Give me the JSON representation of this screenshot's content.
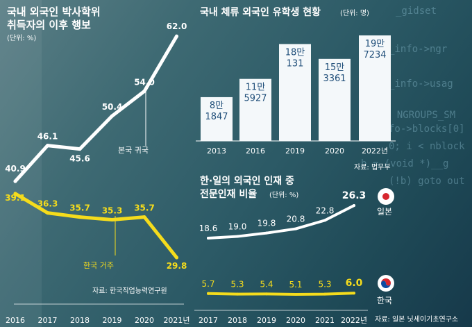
{
  "left_chart": {
    "title_line1": "국내 외국인 박사학위",
    "title_line2": "취득자의 이후 행보",
    "unit": "(단위: %)",
    "source": "자료: 한국직업능력연구원",
    "annotation_white": "본국 귀국",
    "annotation_yellow": "한국 거주"
  },
  "top_chart": {
    "title": "국내 체류 외국인 유학생 현황",
    "unit": "(단위: 명)",
    "source": "자료: 법무부"
  },
  "bottom_chart": {
    "title_line1": "한·일의 외국인 인재 중",
    "title_line2": "전문인재 비율",
    "unit": "(단위: %)",
    "source": "자료: 일본 닛세이기초연구소",
    "legend_japan": "일본",
    "legend_korea": "한국"
  },
  "colors": {
    "white_line": "#ffffff",
    "yellow_line": "#f5dc1c",
    "bar": "#f4f8fa",
    "bar_text": "#1f4e79"
  },
  "chart_data": [
    {
      "type": "line",
      "title": "국내 외국인 박사학위 취득자의 이후 행보",
      "x": [
        "2016",
        "2017",
        "2018",
        "2019",
        "2020",
        "2021년"
      ],
      "series": [
        {
          "name": "본국 귀국",
          "values": [
            40.9,
            46.1,
            45.6,
            50.4,
            54.0,
            62.0
          ],
          "labels": [
            "40.9",
            "46.1",
            "45.6",
            "50.4",
            "54.0",
            "62.0"
          ]
        },
        {
          "name": "한국 거주",
          "values": [
            39.1,
            36.3,
            35.7,
            35.3,
            35.7,
            29.8
          ],
          "labels": [
            "39.1",
            "36.3",
            "35.7",
            "35.3",
            "35.7",
            "29.8"
          ]
        }
      ]
    },
    {
      "type": "bar",
      "title": "국내 체류 외국인 유학생 현황",
      "categories": [
        "2013",
        "2016",
        "2019",
        "2020",
        "2022년"
      ],
      "values": [
        81847,
        115927,
        181131,
        153361,
        197234
      ],
      "labels": [
        [
          "8만",
          "1847"
        ],
        [
          "11만",
          "5927"
        ],
        [
          "18만",
          "131"
        ],
        [
          "15만",
          "3361"
        ],
        [
          "19만",
          "7234"
        ]
      ]
    },
    {
      "type": "line",
      "title": "한·일의 외국인 인재 중 전문인재 비율",
      "x": [
        "2017",
        "2018",
        "2019",
        "2020",
        "2021",
        "2022년"
      ],
      "series": [
        {
          "name": "일본",
          "values": [
            18.6,
            19.0,
            19.8,
            20.8,
            22.8,
            26.3
          ],
          "labels": [
            "18.6",
            "19.0",
            "19.8",
            "20.8",
            "22.8",
            "26.3"
          ]
        },
        {
          "name": "한국",
          "values": [
            5.7,
            5.3,
            5.4,
            5.1,
            5.3,
            6.0
          ],
          "labels": [
            "5.7",
            "5.3",
            "5.4",
            "5.1",
            "5.3",
            "6.0"
          ]
        }
      ]
    }
  ]
}
